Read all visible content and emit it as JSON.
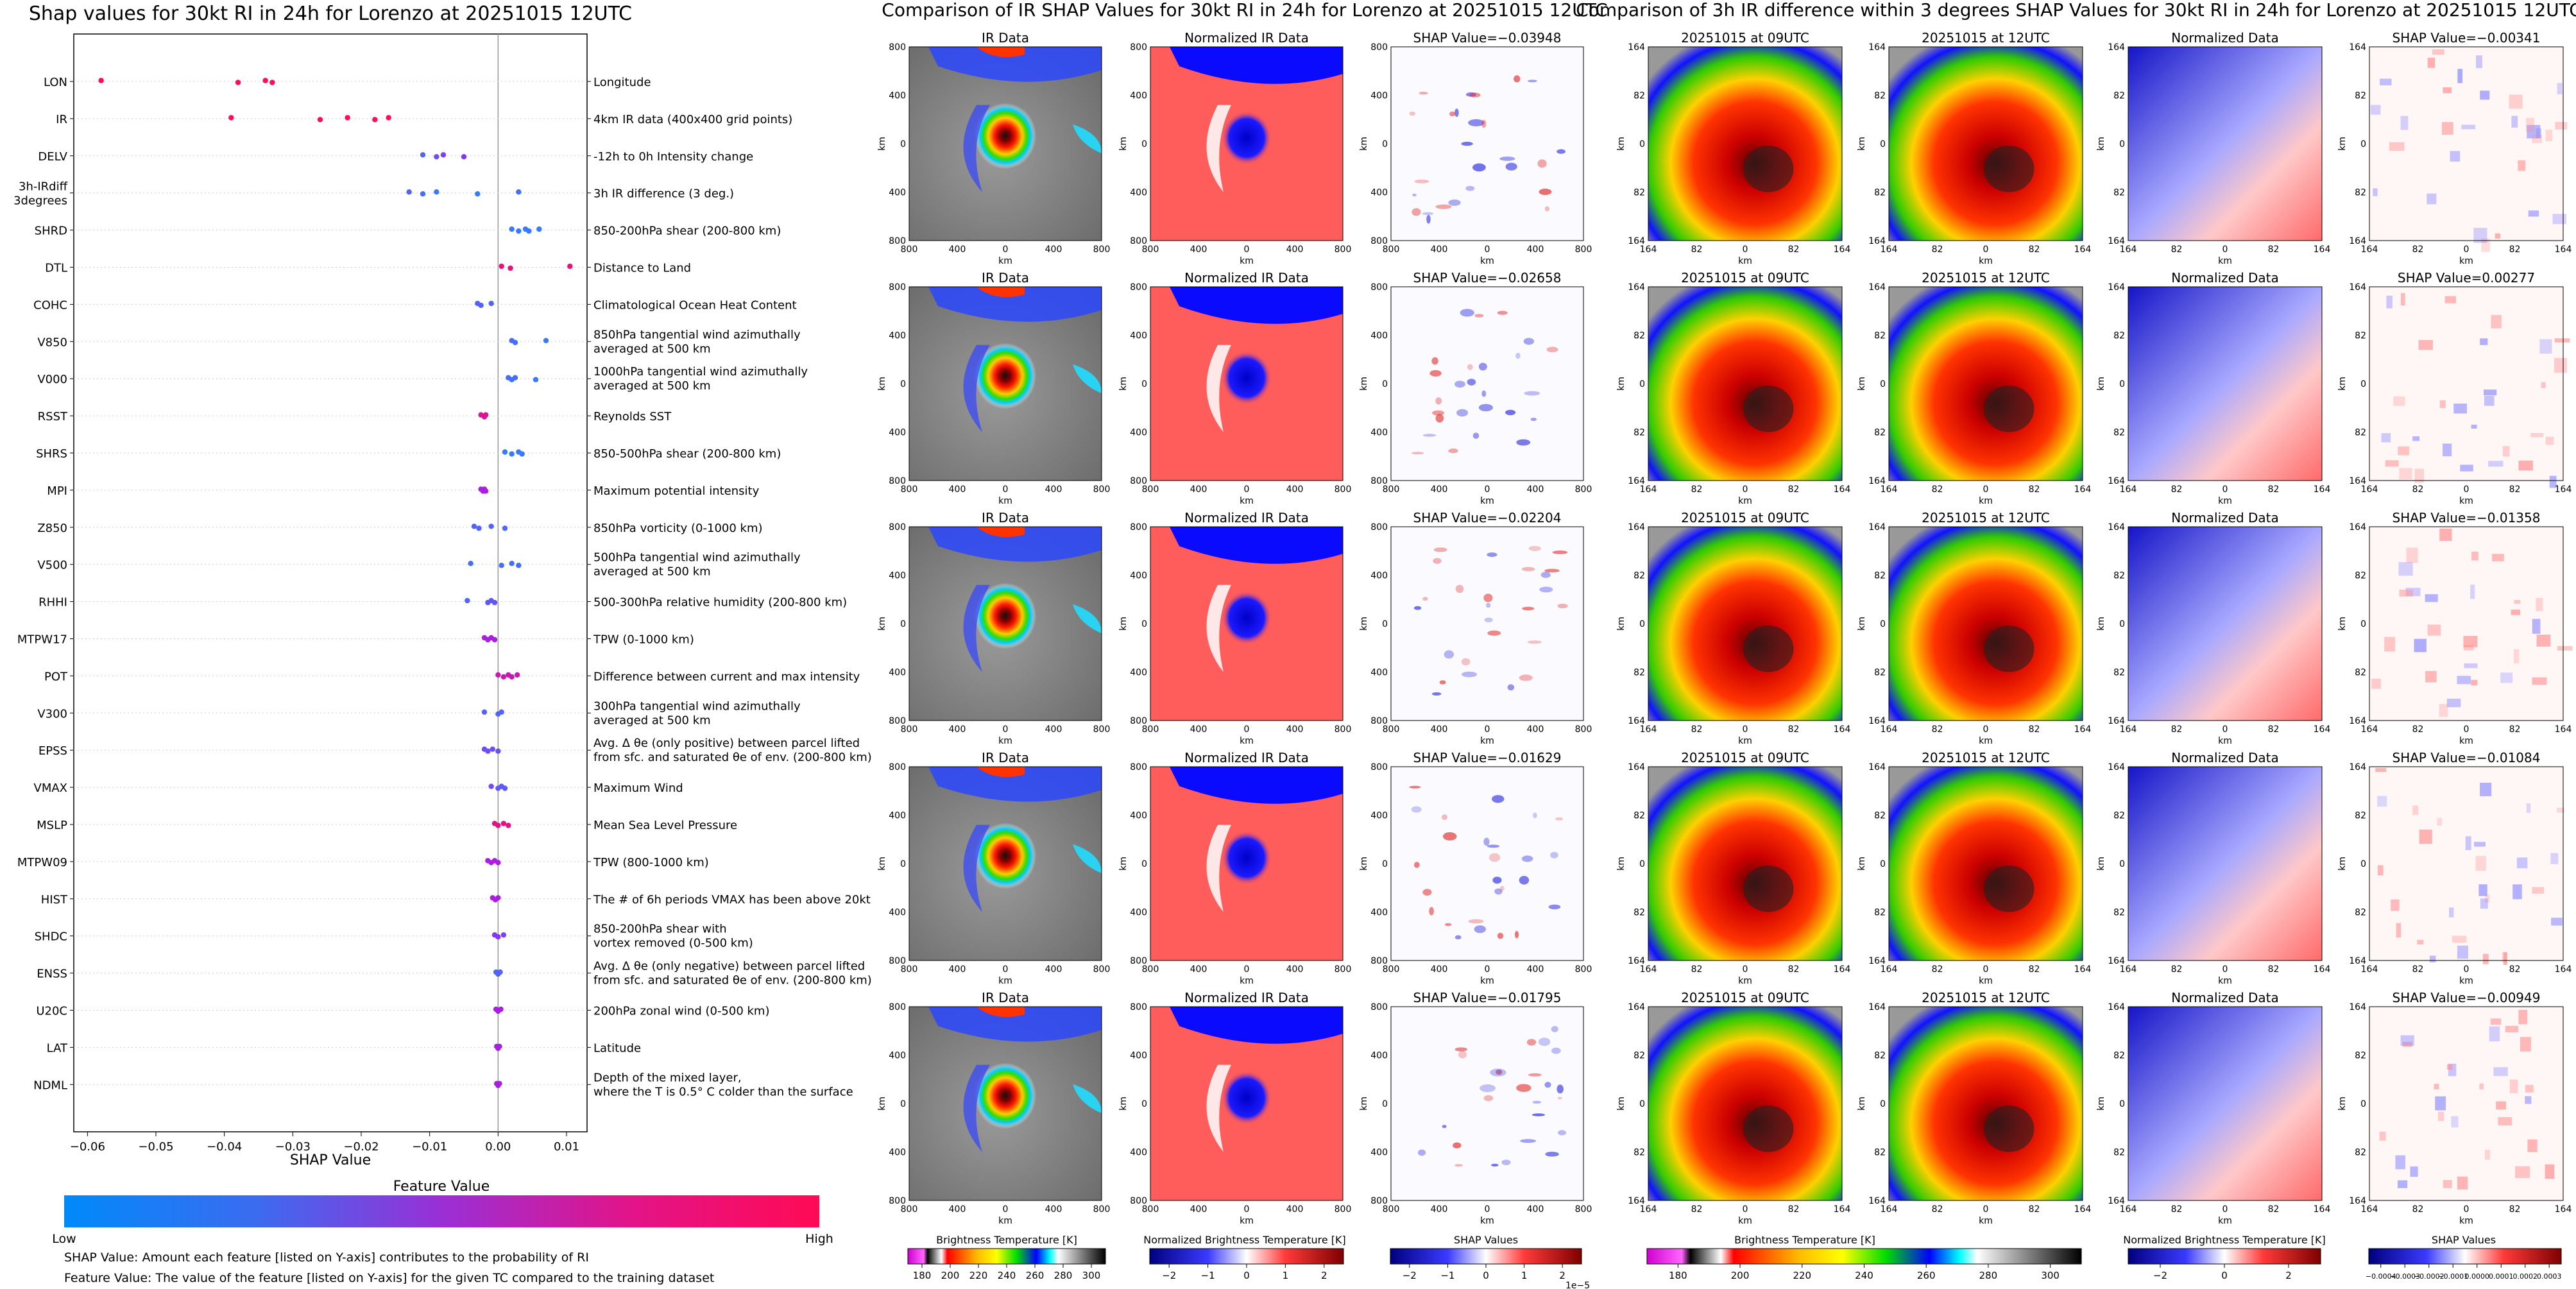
{
  "colors": {
    "low": "#1e90ff",
    "mid": "#a020f0",
    "high": "#ff0d57"
  },
  "chart_data": [
    {
      "type": "scatter",
      "title": "Shap values for 30kt RI in 24h for Lorenzo at 20251015 12UTC",
      "xlabel": "SHAP Value",
      "ylabel": "",
      "xlim": [
        -0.062,
        0.013
      ],
      "xticks": [
        -0.06,
        -0.05,
        -0.04,
        -0.03,
        -0.02,
        -0.01,
        0.0,
        0.01
      ],
      "xtick_labels": [
        "−0.06",
        "−0.05",
        "−0.04",
        "−0.03",
        "−0.02",
        "−0.01",
        "0.00",
        "0.01"
      ],
      "grid": false,
      "colorbar": {
        "title": "Feature Value",
        "low_label": "Low",
        "high_label": "High"
      },
      "notes": [
        "SHAP Value: Amount each feature [listed on Y-axis] contributes to the probability of RI",
        "Feature Value: The value of the feature [listed on Y-axis] for the given TC compared to the training dataset"
      ],
      "features": [
        {
          "name": "LON",
          "desc": [
            "Longitude"
          ],
          "points": [
            [
              -0.058,
              1
            ],
            [
              -0.038,
              1
            ],
            [
              -0.034,
              1
            ],
            [
              -0.033,
              1
            ]
          ]
        },
        {
          "name": "IR",
          "desc": [
            "4km IR data (400x400 grid points)"
          ],
          "points": [
            [
              -0.039,
              1
            ],
            [
              -0.026,
              1
            ],
            [
              -0.022,
              1
            ],
            [
              -0.018,
              1
            ],
            [
              -0.016,
              1
            ]
          ]
        },
        {
          "name": "DELV",
          "desc": [
            "-12h to 0h Intensity change"
          ],
          "points": [
            [
              -0.011,
              0.2
            ],
            [
              -0.009,
              0.3
            ],
            [
              -0.008,
              0.35
            ],
            [
              -0.005,
              0.4
            ]
          ]
        },
        {
          "name": [
            "3h-IRdiff",
            "3degrees"
          ],
          "desc": [
            "3h IR difference (3 deg.)"
          ],
          "points": [
            [
              -0.013,
              0.2
            ],
            [
              -0.011,
              0.15
            ],
            [
              -0.009,
              0.1
            ],
            [
              -0.003,
              0.1
            ],
            [
              0.003,
              0.15
            ]
          ]
        },
        {
          "name": "SHRD",
          "desc": [
            "850-200hPa shear (200-800 km)"
          ],
          "points": [
            [
              0.002,
              0.1
            ],
            [
              0.003,
              0.1
            ],
            [
              0.004,
              0.1
            ],
            [
              0.0045,
              0.1
            ],
            [
              0.006,
              0.1
            ]
          ]
        },
        {
          "name": "DTL",
          "desc": [
            "Distance to Land"
          ],
          "points": [
            [
              0.0005,
              0.9
            ],
            [
              0.0018,
              0.9
            ],
            [
              0.0105,
              0.9
            ]
          ]
        },
        {
          "name": "COHC",
          "desc": [
            "Climatological Ocean Heat Content"
          ],
          "points": [
            [
              -0.003,
              0.2
            ],
            [
              -0.0025,
              0.2
            ],
            [
              -0.001,
              0.2
            ]
          ]
        },
        {
          "name": "V850",
          "desc": [
            "850hPa tangential wind azimuthally",
            "averaged at 500 km"
          ],
          "points": [
            [
              0.002,
              0.15
            ],
            [
              0.0025,
              0.15
            ],
            [
              0.007,
              0.1
            ]
          ]
        },
        {
          "name": "V000",
          "desc": [
            "1000hPa tangential wind azimuthally",
            "averaged at 500 km"
          ],
          "points": [
            [
              0.0015,
              0.15
            ],
            [
              0.002,
              0.15
            ],
            [
              0.0025,
              0.15
            ],
            [
              0.0055,
              0.1
            ]
          ]
        },
        {
          "name": "RSST",
          "desc": [
            "Reynolds SST"
          ],
          "points": [
            [
              -0.0025,
              0.8
            ],
            [
              -0.002,
              0.8
            ],
            [
              -0.0018,
              0.8
            ]
          ]
        },
        {
          "name": "SHRS",
          "desc": [
            "850-500hPa shear (200-800 km)"
          ],
          "points": [
            [
              0.001,
              0.1
            ],
            [
              0.002,
              0.1
            ],
            [
              0.003,
              0.1
            ],
            [
              0.0035,
              0.1
            ]
          ]
        },
        {
          "name": "MPI",
          "desc": [
            "Maximum potential intensity"
          ],
          "points": [
            [
              -0.0025,
              0.55
            ],
            [
              -0.0022,
              0.55
            ],
            [
              -0.002,
              0.55
            ],
            [
              -0.0018,
              0.55
            ]
          ]
        },
        {
          "name": "Z850",
          "desc": [
            "850hPa vorticity (0-1000 km)"
          ],
          "points": [
            [
              -0.0035,
              0.2
            ],
            [
              -0.0028,
              0.2
            ],
            [
              -0.001,
              0.2
            ],
            [
              0.001,
              0.2
            ]
          ]
        },
        {
          "name": "V500",
          "desc": [
            "500hPa tangential wind azimuthally",
            "averaged at 500 km"
          ],
          "points": [
            [
              -0.004,
              0.15
            ],
            [
              0.0005,
              0.15
            ],
            [
              0.002,
              0.15
            ],
            [
              0.003,
              0.15
            ]
          ]
        },
        {
          "name": "RHHI",
          "desc": [
            "500-300hPa relative humidity (200-800 km)"
          ],
          "points": [
            [
              -0.0045,
              0.2
            ],
            [
              -0.0015,
              0.25
            ],
            [
              -0.001,
              0.25
            ],
            [
              -0.0005,
              0.25
            ]
          ]
        },
        {
          "name": "MTPW17",
          "desc": [
            "TPW (0-1000 km)"
          ],
          "points": [
            [
              -0.002,
              0.55
            ],
            [
              -0.0015,
              0.55
            ],
            [
              -0.001,
              0.55
            ],
            [
              -0.0005,
              0.55
            ]
          ]
        },
        {
          "name": "POT",
          "desc": [
            "Difference between current and max intensity"
          ],
          "points": [
            [
              0.0,
              0.7
            ],
            [
              0.0008,
              0.7
            ],
            [
              0.0015,
              0.7
            ],
            [
              0.002,
              0.7
            ],
            [
              0.0028,
              0.7
            ]
          ]
        },
        {
          "name": "V300",
          "desc": [
            "300hPa tangential wind azimuthally",
            "averaged at 500 km"
          ],
          "points": [
            [
              -0.002,
              0.2
            ],
            [
              0.0,
              0.2
            ],
            [
              0.0005,
              0.2
            ]
          ]
        },
        {
          "name": "EPSS",
          "desc": [
            "Avg. Δ θe (only positive) between parcel lifted",
            "from sfc. and saturated θe of env. (200-800 km)"
          ],
          "points": [
            [
              -0.002,
              0.3
            ],
            [
              -0.0015,
              0.3
            ],
            [
              -0.0008,
              0.3
            ],
            [
              0.0,
              0.3
            ]
          ]
        },
        {
          "name": "VMAX",
          "desc": [
            "Maximum Wind"
          ],
          "points": [
            [
              -0.001,
              0.3
            ],
            [
              0.0,
              0.25
            ],
            [
              0.0005,
              0.25
            ],
            [
              0.001,
              0.25
            ]
          ]
        },
        {
          "name": "MSLP",
          "desc": [
            "Mean Sea Level Pressure"
          ],
          "points": [
            [
              -0.0005,
              0.85
            ],
            [
              0.0,
              0.85
            ],
            [
              0.0008,
              0.85
            ],
            [
              0.0015,
              0.85
            ]
          ]
        },
        {
          "name": "MTPW09",
          "desc": [
            "TPW (800-1000 km)"
          ],
          "points": [
            [
              -0.0015,
              0.55
            ],
            [
              -0.001,
              0.55
            ],
            [
              -0.0005,
              0.55
            ],
            [
              0.0,
              0.55
            ]
          ]
        },
        {
          "name": "HIST",
          "desc": [
            "The # of 6h periods VMAX has been above 20kt"
          ],
          "points": [
            [
              -0.0008,
              0.55
            ],
            [
              -0.0004,
              0.55
            ],
            [
              0.0,
              0.55
            ]
          ]
        },
        {
          "name": "SHDC",
          "desc": [
            "850-200hPa shear with",
            "vortex removed (0-500 km)"
          ],
          "points": [
            [
              -0.0005,
              0.4
            ],
            [
              0.0,
              0.4
            ],
            [
              0.0008,
              0.35
            ]
          ]
        },
        {
          "name": "ENSS",
          "desc": [
            "Avg. Δ θe (only negative) between parcel lifted",
            "from sfc. and saturated θe of env. (200-800 km)"
          ],
          "points": [
            [
              -0.0003,
              0.2
            ],
            [
              0.0,
              0.2
            ],
            [
              0.0003,
              0.2
            ]
          ]
        },
        {
          "name": "U20C",
          "desc": [
            "200hPa zonal wind (0-500 km)"
          ],
          "points": [
            [
              -0.0003,
              0.55
            ],
            [
              0.0,
              0.55
            ],
            [
              0.0004,
              0.55
            ]
          ]
        },
        {
          "name": "LAT",
          "desc": [
            "Latitude"
          ],
          "points": [
            [
              -0.0002,
              0.55
            ],
            [
              0.0,
              0.55
            ],
            [
              0.0002,
              0.55
            ]
          ]
        },
        {
          "name": "NDML",
          "desc": [
            "Depth of the mixed layer,",
            "where the T is 0.5° C colder than the surface"
          ],
          "points": [
            [
              -0.0002,
              0.55
            ],
            [
              0.0,
              0.55
            ],
            [
              0.0002,
              0.55
            ]
          ]
        }
      ]
    },
    {
      "type": "heatmap",
      "title": "Comparison of IR SHAP Values for 30kt RI in 24h for Lorenzo at 20251015 12UTC",
      "panel_titles": [
        "IR Data",
        "Normalized IR Data"
      ],
      "shap_values": [
        "−0.03948",
        "−0.02658",
        "−0.02204",
        "−0.01629",
        "−0.01795"
      ],
      "shap_prefix": "SHAP Value=",
      "axis_label": "km",
      "ticks": [
        "800",
        "400",
        "0",
        "400",
        "800"
      ],
      "colorbars": [
        {
          "label": "Brightness Temperature [K]",
          "ticks": [
            "180",
            "200",
            "220",
            "240",
            "260",
            "280",
            "300"
          ]
        },
        {
          "label": "Normalized Brightness Temperature [K]",
          "ticks": [
            "−2",
            "−1",
            "0",
            "1",
            "2"
          ]
        },
        {
          "label": "SHAP Values",
          "ticks": [
            "−2",
            "−1",
            "0",
            "1",
            "2"
          ],
          "offset": "1e−5"
        }
      ]
    },
    {
      "type": "heatmap",
      "title": "Comparison of 3h IR difference within 3 degrees SHAP Values for 30kt RI in 24h for Lorenzo at 20251015 12UTC",
      "panel_titles": [
        "20251015 at 09UTC",
        "20251015 at 12UTC",
        "Normalized Data"
      ],
      "shap_values": [
        "−0.00341",
        "0.00277",
        "−0.01358",
        "−0.01084",
        "−0.00949"
      ],
      "shap_prefix": "SHAP Value=",
      "axis_label": "km",
      "ticks": [
        "164",
        "82",
        "0",
        "82",
        "164"
      ],
      "colorbars": [
        {
          "label": "Brightness Temperature [K]",
          "ticks": [
            "180",
            "200",
            "220",
            "240",
            "260",
            "280",
            "300"
          ]
        },
        {
          "label": "Normalized Brightness Temperature [K]",
          "ticks": [
            "−2",
            "0",
            "2"
          ]
        },
        {
          "label": "SHAP Values",
          "ticks": [
            "−0.0004",
            "−0.0003",
            "−0.0002",
            "−0.0001",
            "0.0000",
            "0.0001",
            "0.0002",
            "0.0003"
          ]
        }
      ]
    }
  ]
}
